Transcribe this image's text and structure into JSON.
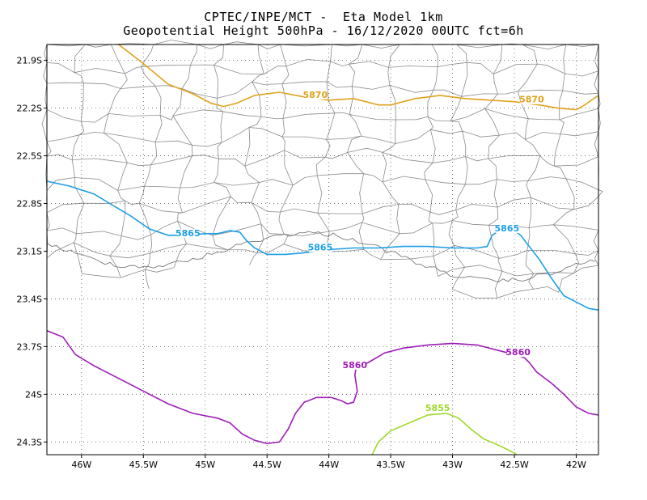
{
  "header": {
    "line1": "CPTEC/INPE/MCT -  Eta Model 1km",
    "line2": "Geopotential Height 500hPa - 16/12/2020 00UTC fct=6h"
  },
  "map": {
    "lon_range": [
      -46.28,
      -41.82
    ],
    "lat_range": [
      -21.8,
      -24.38
    ],
    "lon_ticks": [
      {
        "v": -46.0,
        "label": "46W"
      },
      {
        "v": -45.5,
        "label": "45.5W"
      },
      {
        "v": -45.0,
        "label": "45W"
      },
      {
        "v": -44.5,
        "label": "44.5W"
      },
      {
        "v": -44.0,
        "label": "44W"
      },
      {
        "v": -43.5,
        "label": "43.5W"
      },
      {
        "v": -43.0,
        "label": "43W"
      },
      {
        "v": -42.5,
        "label": "42.5W"
      },
      {
        "v": -42.0,
        "label": "42W"
      }
    ],
    "lat_ticks": [
      {
        "v": -21.9,
        "label": "21.9S"
      },
      {
        "v": -22.2,
        "label": "22.2S"
      },
      {
        "v": -22.5,
        "label": "22.5S"
      },
      {
        "v": -22.8,
        "label": "22.8S"
      },
      {
        "v": -23.1,
        "label": "23.1S"
      },
      {
        "v": -23.4,
        "label": "23.4S"
      },
      {
        "v": -23.7,
        "label": "23.7S"
      },
      {
        "v": -24.0,
        "label": "24S"
      },
      {
        "v": -24.3,
        "label": "24.3S"
      }
    ],
    "contours": [
      {
        "value": "5870",
        "color": "#e0a21a",
        "points": [
          [
            -45.7,
            -21.8
          ],
          [
            -45.5,
            -21.92
          ],
          [
            -45.3,
            -22.05
          ],
          [
            -45.1,
            -22.11
          ],
          [
            -44.95,
            -22.17
          ],
          [
            -44.85,
            -22.19
          ],
          [
            -44.75,
            -22.17
          ],
          [
            -44.6,
            -22.12
          ],
          [
            -44.4,
            -22.1
          ],
          [
            -44.2,
            -22.13
          ],
          [
            -44.0,
            -22.15
          ],
          [
            -43.8,
            -22.14
          ],
          [
            -43.6,
            -22.18
          ],
          [
            -43.5,
            -22.18
          ],
          [
            -43.3,
            -22.14
          ],
          [
            -43.1,
            -22.12
          ],
          [
            -42.9,
            -22.14
          ],
          [
            -42.7,
            -22.15
          ],
          [
            -42.5,
            -22.16
          ],
          [
            -42.3,
            -22.18
          ],
          [
            -42.15,
            -22.2
          ],
          [
            -42.0,
            -22.21
          ],
          [
            -41.95,
            -22.19
          ],
          [
            -41.82,
            -22.12
          ]
        ],
        "labels": [
          {
            "text": "5870",
            "lon": -44.11,
            "lat": -22.13
          },
          {
            "text": "5870",
            "lon": -42.36,
            "lat": -22.16
          }
        ]
      },
      {
        "value": "5865",
        "color": "#1c9fe6",
        "points": [
          [
            -46.28,
            -22.66
          ],
          [
            -46.1,
            -22.69
          ],
          [
            -45.9,
            -22.74
          ],
          [
            -45.75,
            -22.81
          ],
          [
            -45.6,
            -22.88
          ],
          [
            -45.45,
            -22.96
          ],
          [
            -45.3,
            -23.0
          ],
          [
            -45.15,
            -23.0
          ],
          [
            -45.0,
            -22.99
          ],
          [
            -44.9,
            -22.99
          ],
          [
            -44.8,
            -22.97
          ],
          [
            -44.72,
            -22.98
          ],
          [
            -44.67,
            -23.03
          ],
          [
            -44.6,
            -23.08
          ],
          [
            -44.5,
            -23.12
          ],
          [
            -44.35,
            -23.12
          ],
          [
            -44.2,
            -23.11
          ],
          [
            -44.0,
            -23.09
          ],
          [
            -43.8,
            -23.08
          ],
          [
            -43.6,
            -23.08
          ],
          [
            -43.4,
            -23.07
          ],
          [
            -43.2,
            -23.07
          ],
          [
            -43.0,
            -23.08
          ],
          [
            -42.8,
            -23.08
          ],
          [
            -42.72,
            -23.07
          ],
          [
            -42.68,
            -23.0
          ],
          [
            -42.62,
            -22.97
          ],
          [
            -42.5,
            -22.97
          ],
          [
            -42.45,
            -23.0
          ],
          [
            -42.4,
            -23.05
          ],
          [
            -42.3,
            -23.15
          ],
          [
            -42.2,
            -23.27
          ],
          [
            -42.1,
            -23.38
          ],
          [
            -42.0,
            -23.42
          ],
          [
            -41.9,
            -23.46
          ],
          [
            -41.82,
            -23.47
          ]
        ],
        "labels": [
          {
            "text": "5865",
            "lon": -45.14,
            "lat": -23.0
          },
          {
            "text": "5865",
            "lon": -44.07,
            "lat": -23.09
          },
          {
            "text": "5865",
            "lon": -42.56,
            "lat": -22.97
          }
        ]
      },
      {
        "value": "5860",
        "color": "#9e1cb8",
        "points": [
          [
            -46.28,
            -23.6
          ],
          [
            -46.15,
            -23.64
          ],
          [
            -46.05,
            -23.75
          ],
          [
            -45.9,
            -23.82
          ],
          [
            -45.7,
            -23.9
          ],
          [
            -45.5,
            -23.98
          ],
          [
            -45.3,
            -24.06
          ],
          [
            -45.1,
            -24.12
          ],
          [
            -44.9,
            -24.15
          ],
          [
            -44.8,
            -24.18
          ],
          [
            -44.7,
            -24.25
          ],
          [
            -44.6,
            -24.29
          ],
          [
            -44.5,
            -24.31
          ],
          [
            -44.4,
            -24.3
          ],
          [
            -44.33,
            -24.22
          ],
          [
            -44.27,
            -24.12
          ],
          [
            -44.2,
            -24.05
          ],
          [
            -44.1,
            -24.02
          ],
          [
            -43.98,
            -24.02
          ],
          [
            -43.9,
            -24.04
          ],
          [
            -43.85,
            -24.06
          ],
          [
            -43.8,
            -24.05
          ],
          [
            -43.77,
            -23.98
          ],
          [
            -43.79,
            -23.88
          ],
          [
            -43.78,
            -23.83
          ],
          [
            -43.68,
            -23.8
          ],
          [
            -43.55,
            -23.74
          ],
          [
            -43.4,
            -23.71
          ],
          [
            -43.2,
            -23.69
          ],
          [
            -43.0,
            -23.68
          ],
          [
            -42.8,
            -23.69
          ],
          [
            -42.6,
            -23.73
          ],
          [
            -42.5,
            -23.75
          ],
          [
            -42.42,
            -23.77
          ],
          [
            -42.38,
            -23.8
          ],
          [
            -42.32,
            -23.86
          ],
          [
            -42.2,
            -23.93
          ],
          [
            -42.1,
            -24.0
          ],
          [
            -42.0,
            -24.08
          ],
          [
            -41.9,
            -24.12
          ],
          [
            -41.82,
            -24.13
          ]
        ],
        "labels": [
          {
            "text": "5860",
            "lon": -43.79,
            "lat": -23.83
          },
          {
            "text": "5860",
            "lon": -42.47,
            "lat": -23.75
          }
        ]
      },
      {
        "value": "5855",
        "color": "#9fd82a",
        "points": [
          [
            -43.65,
            -24.38
          ],
          [
            -43.6,
            -24.3
          ],
          [
            -43.5,
            -24.23
          ],
          [
            -43.35,
            -24.18
          ],
          [
            -43.2,
            -24.13
          ],
          [
            -43.05,
            -24.12
          ],
          [
            -42.95,
            -24.15
          ],
          [
            -42.85,
            -24.22
          ],
          [
            -42.75,
            -24.28
          ],
          [
            -42.6,
            -24.33
          ],
          [
            -42.5,
            -24.37
          ],
          [
            -42.48,
            -24.38
          ]
        ],
        "labels": [
          {
            "text": "5855",
            "lon": -43.12,
            "lat": -24.1
          }
        ]
      }
    ]
  }
}
